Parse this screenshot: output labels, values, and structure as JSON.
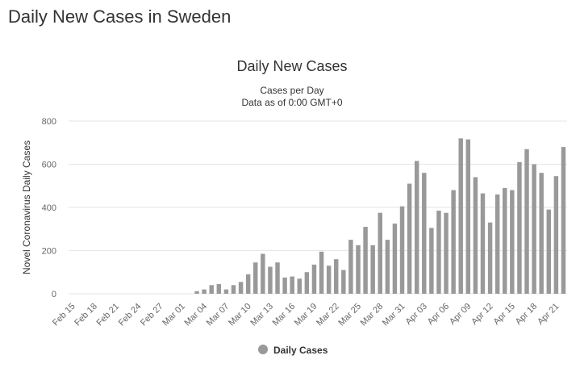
{
  "header": {
    "title": "Daily New Cases in Sweden"
  },
  "chart_data": {
    "type": "bar",
    "title": "Daily New Cases",
    "subtitle": "Cases per Day",
    "note": "Data as of 0:00 GMT+0",
    "y_label": "Novel Coronavirus Daily Cases",
    "categories": [
      "Feb 15",
      null,
      null,
      "Feb 18",
      null,
      null,
      "Feb 21",
      null,
      null,
      "Feb 24",
      null,
      null,
      "Feb 27",
      null,
      null,
      "Mar 01",
      null,
      null,
      "Mar 04",
      null,
      null,
      "Mar 07",
      null,
      null,
      "Mar 10",
      null,
      null,
      "Mar 13",
      null,
      null,
      "Mar 16",
      null,
      null,
      "Mar 19",
      null,
      null,
      "Mar 22",
      null,
      null,
      "Mar 25",
      null,
      null,
      "Mar 28",
      null,
      null,
      "Mar 31",
      null,
      null,
      "Apr 03",
      null,
      null,
      "Apr 06",
      null,
      null,
      "Apr 09",
      null,
      null,
      "Apr 12",
      null,
      null,
      "Apr 15",
      null,
      null,
      "Apr 18",
      null,
      null,
      "Apr 21",
      null
    ],
    "series": [
      {
        "name": "Daily Cases",
        "color": "#999999",
        "values": [
          0,
          0,
          0,
          0,
          0,
          0,
          0,
          0,
          0,
          0,
          0,
          0,
          0,
          0,
          0,
          0,
          0,
          12,
          20,
          40,
          45,
          20,
          40,
          55,
          90,
          145,
          185,
          125,
          145,
          75,
          80,
          70,
          100,
          135,
          195,
          130,
          160,
          110,
          250,
          225,
          310,
          225,
          375,
          250,
          325,
          405,
          510,
          615,
          560,
          305,
          385,
          375,
          480,
          720,
          715,
          540,
          465,
          330,
          460,
          490,
          480,
          610,
          670,
          600,
          560,
          390,
          545,
          680
        ]
      }
    ],
    "ylim": [
      0,
      800
    ],
    "yticks": [
      0,
      200,
      400,
      600,
      800
    ],
    "grid": true,
    "legend": "bottom"
  }
}
